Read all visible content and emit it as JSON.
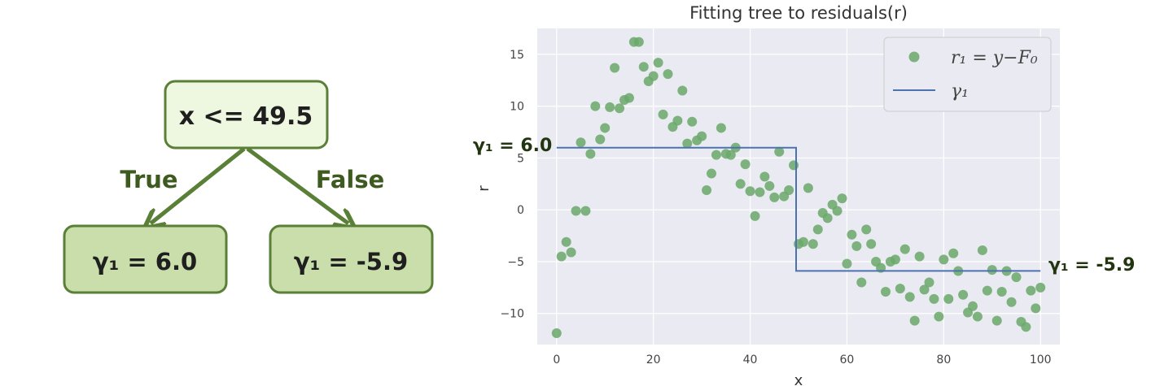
{
  "tree": {
    "root": "x <= 49.5",
    "true_label": "True",
    "false_label": "False",
    "left_leaf": "γ₁ = 6.0",
    "right_leaf": "γ₁ = -5.9"
  },
  "annotations": {
    "left": "γ₁ = 6.0",
    "right": "γ₁ = -5.9"
  },
  "colors": {
    "points": "#6aa86a",
    "step": "#4c72b0",
    "axes_bg": "#eaeaf2",
    "node_fill_root": "#eef7e0",
    "node_fill_leaf": "#c9deaa",
    "node_stroke": "#5a7f37"
  },
  "chart_data": {
    "type": "scatter",
    "title": "Fitting tree to residuals(r)",
    "xlabel": "x",
    "ylabel": "r",
    "xlim": [
      -4,
      104
    ],
    "ylim": [
      -13,
      17.5
    ],
    "xticks": [
      0,
      20,
      40,
      60,
      80,
      100
    ],
    "yticks": [
      -10,
      -5,
      0,
      5,
      10,
      15
    ],
    "xtick_labels": [
      "0",
      "20",
      "40",
      "60",
      "80",
      "100"
    ],
    "ytick_labels": [
      "−10",
      "−5",
      "0",
      "5",
      "10",
      "15"
    ],
    "grid": true,
    "legend_position": "top-right",
    "series": [
      {
        "name": "r₁ = y−F₀",
        "kind": "scatter",
        "points": [
          [
            0,
            -11.9
          ],
          [
            1,
            -4.5
          ],
          [
            2,
            -3.1
          ],
          [
            3,
            -4.1
          ],
          [
            4,
            -0.1
          ],
          [
            5,
            6.5
          ],
          [
            6,
            -0.1
          ],
          [
            7,
            5.4
          ],
          [
            8,
            10.0
          ],
          [
            9,
            6.8
          ],
          [
            10,
            7.9
          ],
          [
            11,
            9.9
          ],
          [
            12,
            13.7
          ],
          [
            13,
            9.8
          ],
          [
            14,
            10.6
          ],
          [
            15,
            10.8
          ],
          [
            16,
            16.2
          ],
          [
            17,
            16.2
          ],
          [
            18,
            13.8
          ],
          [
            19,
            12.4
          ],
          [
            20,
            12.9
          ],
          [
            21,
            14.2
          ],
          [
            22,
            9.2
          ],
          [
            23,
            13.1
          ],
          [
            24,
            8.0
          ],
          [
            25,
            8.6
          ],
          [
            26,
            11.5
          ],
          [
            27,
            6.4
          ],
          [
            28,
            8.5
          ],
          [
            29,
            6.7
          ],
          [
            30,
            7.1
          ],
          [
            31,
            1.9
          ],
          [
            32,
            3.5
          ],
          [
            33,
            5.3
          ],
          [
            34,
            7.9
          ],
          [
            35,
            5.4
          ],
          [
            36,
            5.3
          ],
          [
            37,
            6.0
          ],
          [
            38,
            2.5
          ],
          [
            39,
            4.4
          ],
          [
            40,
            1.8
          ],
          [
            41,
            -0.6
          ],
          [
            42,
            1.7
          ],
          [
            43,
            3.2
          ],
          [
            44,
            2.3
          ],
          [
            45,
            1.2
          ],
          [
            46,
            5.6
          ],
          [
            47,
            1.3
          ],
          [
            48,
            1.9
          ],
          [
            49,
            4.3
          ],
          [
            50,
            -3.3
          ],
          [
            51,
            -3.1
          ],
          [
            52,
            2.1
          ],
          [
            53,
            -3.3
          ],
          [
            54,
            -1.9
          ],
          [
            55,
            -0.3
          ],
          [
            56,
            -0.8
          ],
          [
            57,
            0.5
          ],
          [
            58,
            -0.1
          ],
          [
            59,
            1.1
          ],
          [
            60,
            -5.2
          ],
          [
            61,
            -2.4
          ],
          [
            62,
            -3.5
          ],
          [
            63,
            -7.0
          ],
          [
            64,
            -1.9
          ],
          [
            65,
            -3.3
          ],
          [
            66,
            -5.0
          ],
          [
            67,
            -5.6
          ],
          [
            68,
            -7.9
          ],
          [
            69,
            -5.0
          ],
          [
            70,
            -4.8
          ],
          [
            71,
            -7.6
          ],
          [
            72,
            -3.8
          ],
          [
            73,
            -8.4
          ],
          [
            74,
            -10.7
          ],
          [
            75,
            -4.5
          ],
          [
            76,
            -7.7
          ],
          [
            77,
            -7.0
          ],
          [
            78,
            -8.6
          ],
          [
            79,
            -10.3
          ],
          [
            80,
            -4.8
          ],
          [
            81,
            -8.6
          ],
          [
            82,
            -4.2
          ],
          [
            83,
            -5.9
          ],
          [
            84,
            -8.2
          ],
          [
            85,
            -9.9
          ],
          [
            86,
            -9.3
          ],
          [
            87,
            -10.3
          ],
          [
            88,
            -3.9
          ],
          [
            89,
            -7.8
          ],
          [
            90,
            -5.8
          ],
          [
            91,
            -10.7
          ],
          [
            92,
            -7.9
          ],
          [
            93,
            -5.9
          ],
          [
            94,
            -8.9
          ],
          [
            95,
            -6.5
          ],
          [
            96,
            -10.8
          ],
          [
            97,
            -11.3
          ],
          [
            98,
            -7.8
          ],
          [
            99,
            -9.5
          ],
          [
            100,
            -7.5
          ]
        ]
      },
      {
        "name": "γ₁",
        "kind": "step",
        "points": [
          [
            0,
            6.0
          ],
          [
            49.5,
            6.0
          ],
          [
            49.5,
            -5.9
          ],
          [
            100,
            -5.9
          ]
        ]
      }
    ]
  }
}
